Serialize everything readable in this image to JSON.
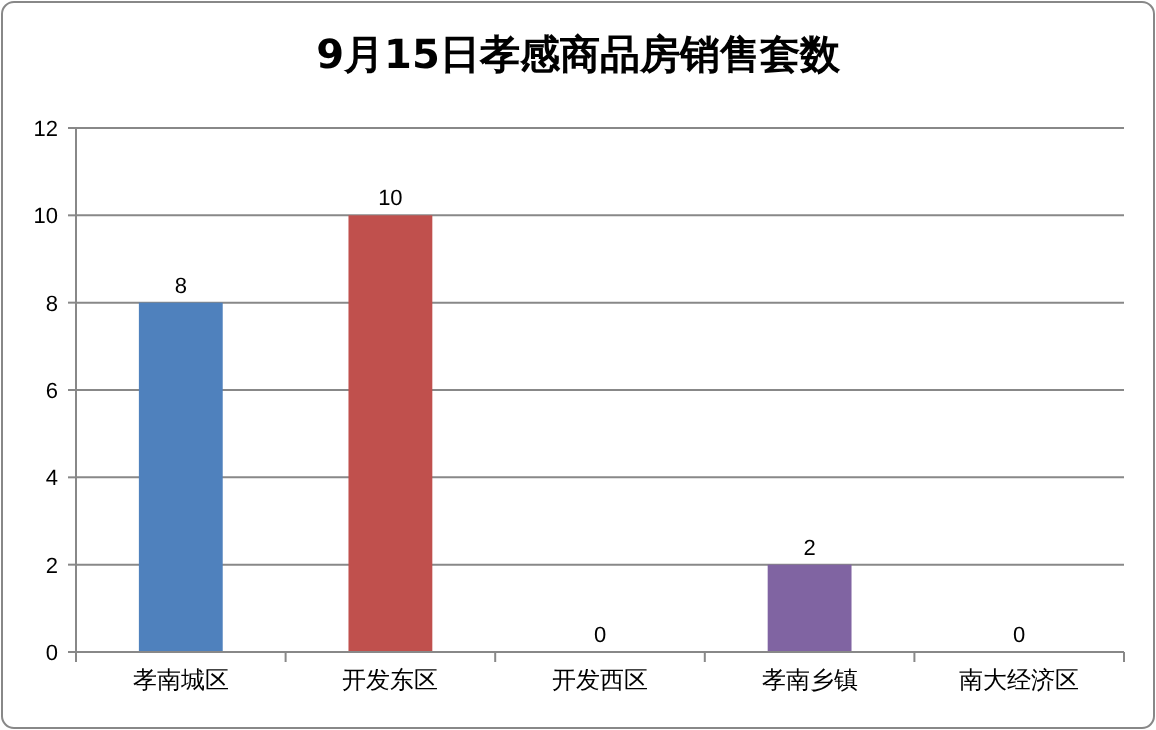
{
  "chart_data": {
    "type": "bar",
    "title": "9月15日孝感商品房销售套数",
    "categories": [
      "孝南城区",
      "开发东区",
      "开发西区",
      "孝南乡镇",
      "南大经济区"
    ],
    "values": [
      8,
      10,
      0,
      2,
      0
    ],
    "colors": [
      "#4f81bd",
      "#c0504d",
      "#9bbb59",
      "#8064a2",
      "#4bacc6"
    ],
    "ylim": [
      0,
      12
    ],
    "yticks": [
      0,
      2,
      4,
      6,
      8,
      10,
      12
    ],
    "grid": "y",
    "data_labels": true
  }
}
